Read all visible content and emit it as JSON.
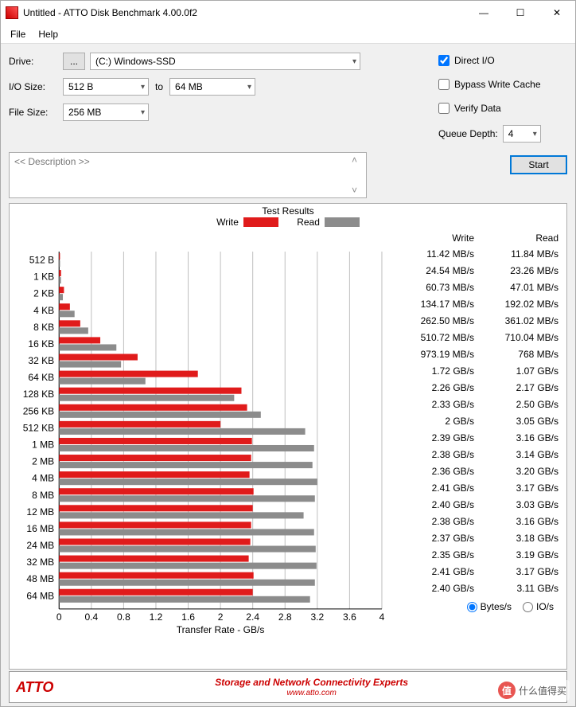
{
  "window": {
    "title": "Untitled - ATTO Disk Benchmark 4.00.0f2",
    "min": "—",
    "max": "☐",
    "close": "✕"
  },
  "menu": {
    "file": "File",
    "help": "Help"
  },
  "form": {
    "drive_lbl": "Drive:",
    "drive_browse": "...",
    "drive_value": "(C:) Windows-SSD",
    "io_lbl": "I/O Size:",
    "io_from": "512 B",
    "to_lbl": "to",
    "io_to": "64 MB",
    "fs_lbl": "File Size:",
    "fs_value": "256 MB",
    "desc_placeholder": "<< Description >>"
  },
  "opts": {
    "direct_io": "Direct I/O",
    "direct_io_checked": true,
    "bypass": "Bypass Write Cache",
    "bypass_checked": false,
    "verify": "Verify Data",
    "verify_checked": false,
    "qd_lbl": "Queue Depth:",
    "qd_value": "4",
    "start": "Start"
  },
  "results": {
    "title": "Test Results",
    "legend_write": "Write",
    "legend_read": "Read",
    "hdr_write": "Write",
    "hdr_read": "Read",
    "xaxis_label": "Transfer Rate - GB/s",
    "units_bytes": "Bytes/s",
    "units_ios": "IO/s",
    "colors": {
      "write": "#e01b1b",
      "read": "#8c8c8c",
      "grid": "#bfbfbf",
      "text": "#000000"
    },
    "x_max": 4.0,
    "x_ticks": [
      0,
      0.4,
      0.8,
      1.2,
      1.6,
      2,
      2.4,
      2.8,
      3.2,
      3.6,
      4
    ],
    "rows": [
      {
        "lbl": "512 B",
        "w_gb": 0.01142,
        "r_gb": 0.01184,
        "w_txt": "11.42 MB/s",
        "r_txt": "11.84 MB/s"
      },
      {
        "lbl": "1 KB",
        "w_gb": 0.02454,
        "r_gb": 0.02326,
        "w_txt": "24.54 MB/s",
        "r_txt": "23.26 MB/s"
      },
      {
        "lbl": "2 KB",
        "w_gb": 0.06073,
        "r_gb": 0.04701,
        "w_txt": "60.73 MB/s",
        "r_txt": "47.01 MB/s"
      },
      {
        "lbl": "4 KB",
        "w_gb": 0.13417,
        "r_gb": 0.19202,
        "w_txt": "134.17 MB/s",
        "r_txt": "192.02 MB/s"
      },
      {
        "lbl": "8 KB",
        "w_gb": 0.2625,
        "r_gb": 0.36102,
        "w_txt": "262.50 MB/s",
        "r_txt": "361.02 MB/s"
      },
      {
        "lbl": "16 KB",
        "w_gb": 0.51072,
        "r_gb": 0.71004,
        "w_txt": "510.72 MB/s",
        "r_txt": "710.04 MB/s"
      },
      {
        "lbl": "32 KB",
        "w_gb": 0.97319,
        "r_gb": 0.768,
        "w_txt": "973.19 MB/s",
        "r_txt": "768 MB/s"
      },
      {
        "lbl": "64 KB",
        "w_gb": 1.72,
        "r_gb": 1.07,
        "w_txt": "1.72 GB/s",
        "r_txt": "1.07 GB/s"
      },
      {
        "lbl": "128 KB",
        "w_gb": 2.26,
        "r_gb": 2.17,
        "w_txt": "2.26 GB/s",
        "r_txt": "2.17 GB/s"
      },
      {
        "lbl": "256 KB",
        "w_gb": 2.33,
        "r_gb": 2.5,
        "w_txt": "2.33 GB/s",
        "r_txt": "2.50 GB/s"
      },
      {
        "lbl": "512 KB",
        "w_gb": 2.0,
        "r_gb": 3.05,
        "w_txt": "2 GB/s",
        "r_txt": "3.05 GB/s"
      },
      {
        "lbl": "1 MB",
        "w_gb": 2.39,
        "r_gb": 3.16,
        "w_txt": "2.39 GB/s",
        "r_txt": "3.16 GB/s"
      },
      {
        "lbl": "2 MB",
        "w_gb": 2.38,
        "r_gb": 3.14,
        "w_txt": "2.38 GB/s",
        "r_txt": "3.14 GB/s"
      },
      {
        "lbl": "4 MB",
        "w_gb": 2.36,
        "r_gb": 3.2,
        "w_txt": "2.36 GB/s",
        "r_txt": "3.20 GB/s"
      },
      {
        "lbl": "8 MB",
        "w_gb": 2.41,
        "r_gb": 3.17,
        "w_txt": "2.41 GB/s",
        "r_txt": "3.17 GB/s"
      },
      {
        "lbl": "12 MB",
        "w_gb": 2.4,
        "r_gb": 3.03,
        "w_txt": "2.40 GB/s",
        "r_txt": "3.03 GB/s"
      },
      {
        "lbl": "16 MB",
        "w_gb": 2.38,
        "r_gb": 3.16,
        "w_txt": "2.38 GB/s",
        "r_txt": "3.16 GB/s"
      },
      {
        "lbl": "24 MB",
        "w_gb": 2.37,
        "r_gb": 3.18,
        "w_txt": "2.37 GB/s",
        "r_txt": "3.18 GB/s"
      },
      {
        "lbl": "32 MB",
        "w_gb": 2.35,
        "r_gb": 3.19,
        "w_txt": "2.35 GB/s",
        "r_txt": "3.19 GB/s"
      },
      {
        "lbl": "48 MB",
        "w_gb": 2.41,
        "r_gb": 3.17,
        "w_txt": "2.41 GB/s",
        "r_txt": "3.17 GB/s"
      },
      {
        "lbl": "64 MB",
        "w_gb": 2.4,
        "r_gb": 3.11,
        "w_txt": "2.40 GB/s",
        "r_txt": "3.11 GB/s"
      }
    ]
  },
  "banner": {
    "brand": "ATTO",
    "slogan": "Storage and Network Connectivity Experts",
    "url": "www.atto.com"
  },
  "watermark": {
    "icon": "值",
    "text": "什么值得买"
  }
}
